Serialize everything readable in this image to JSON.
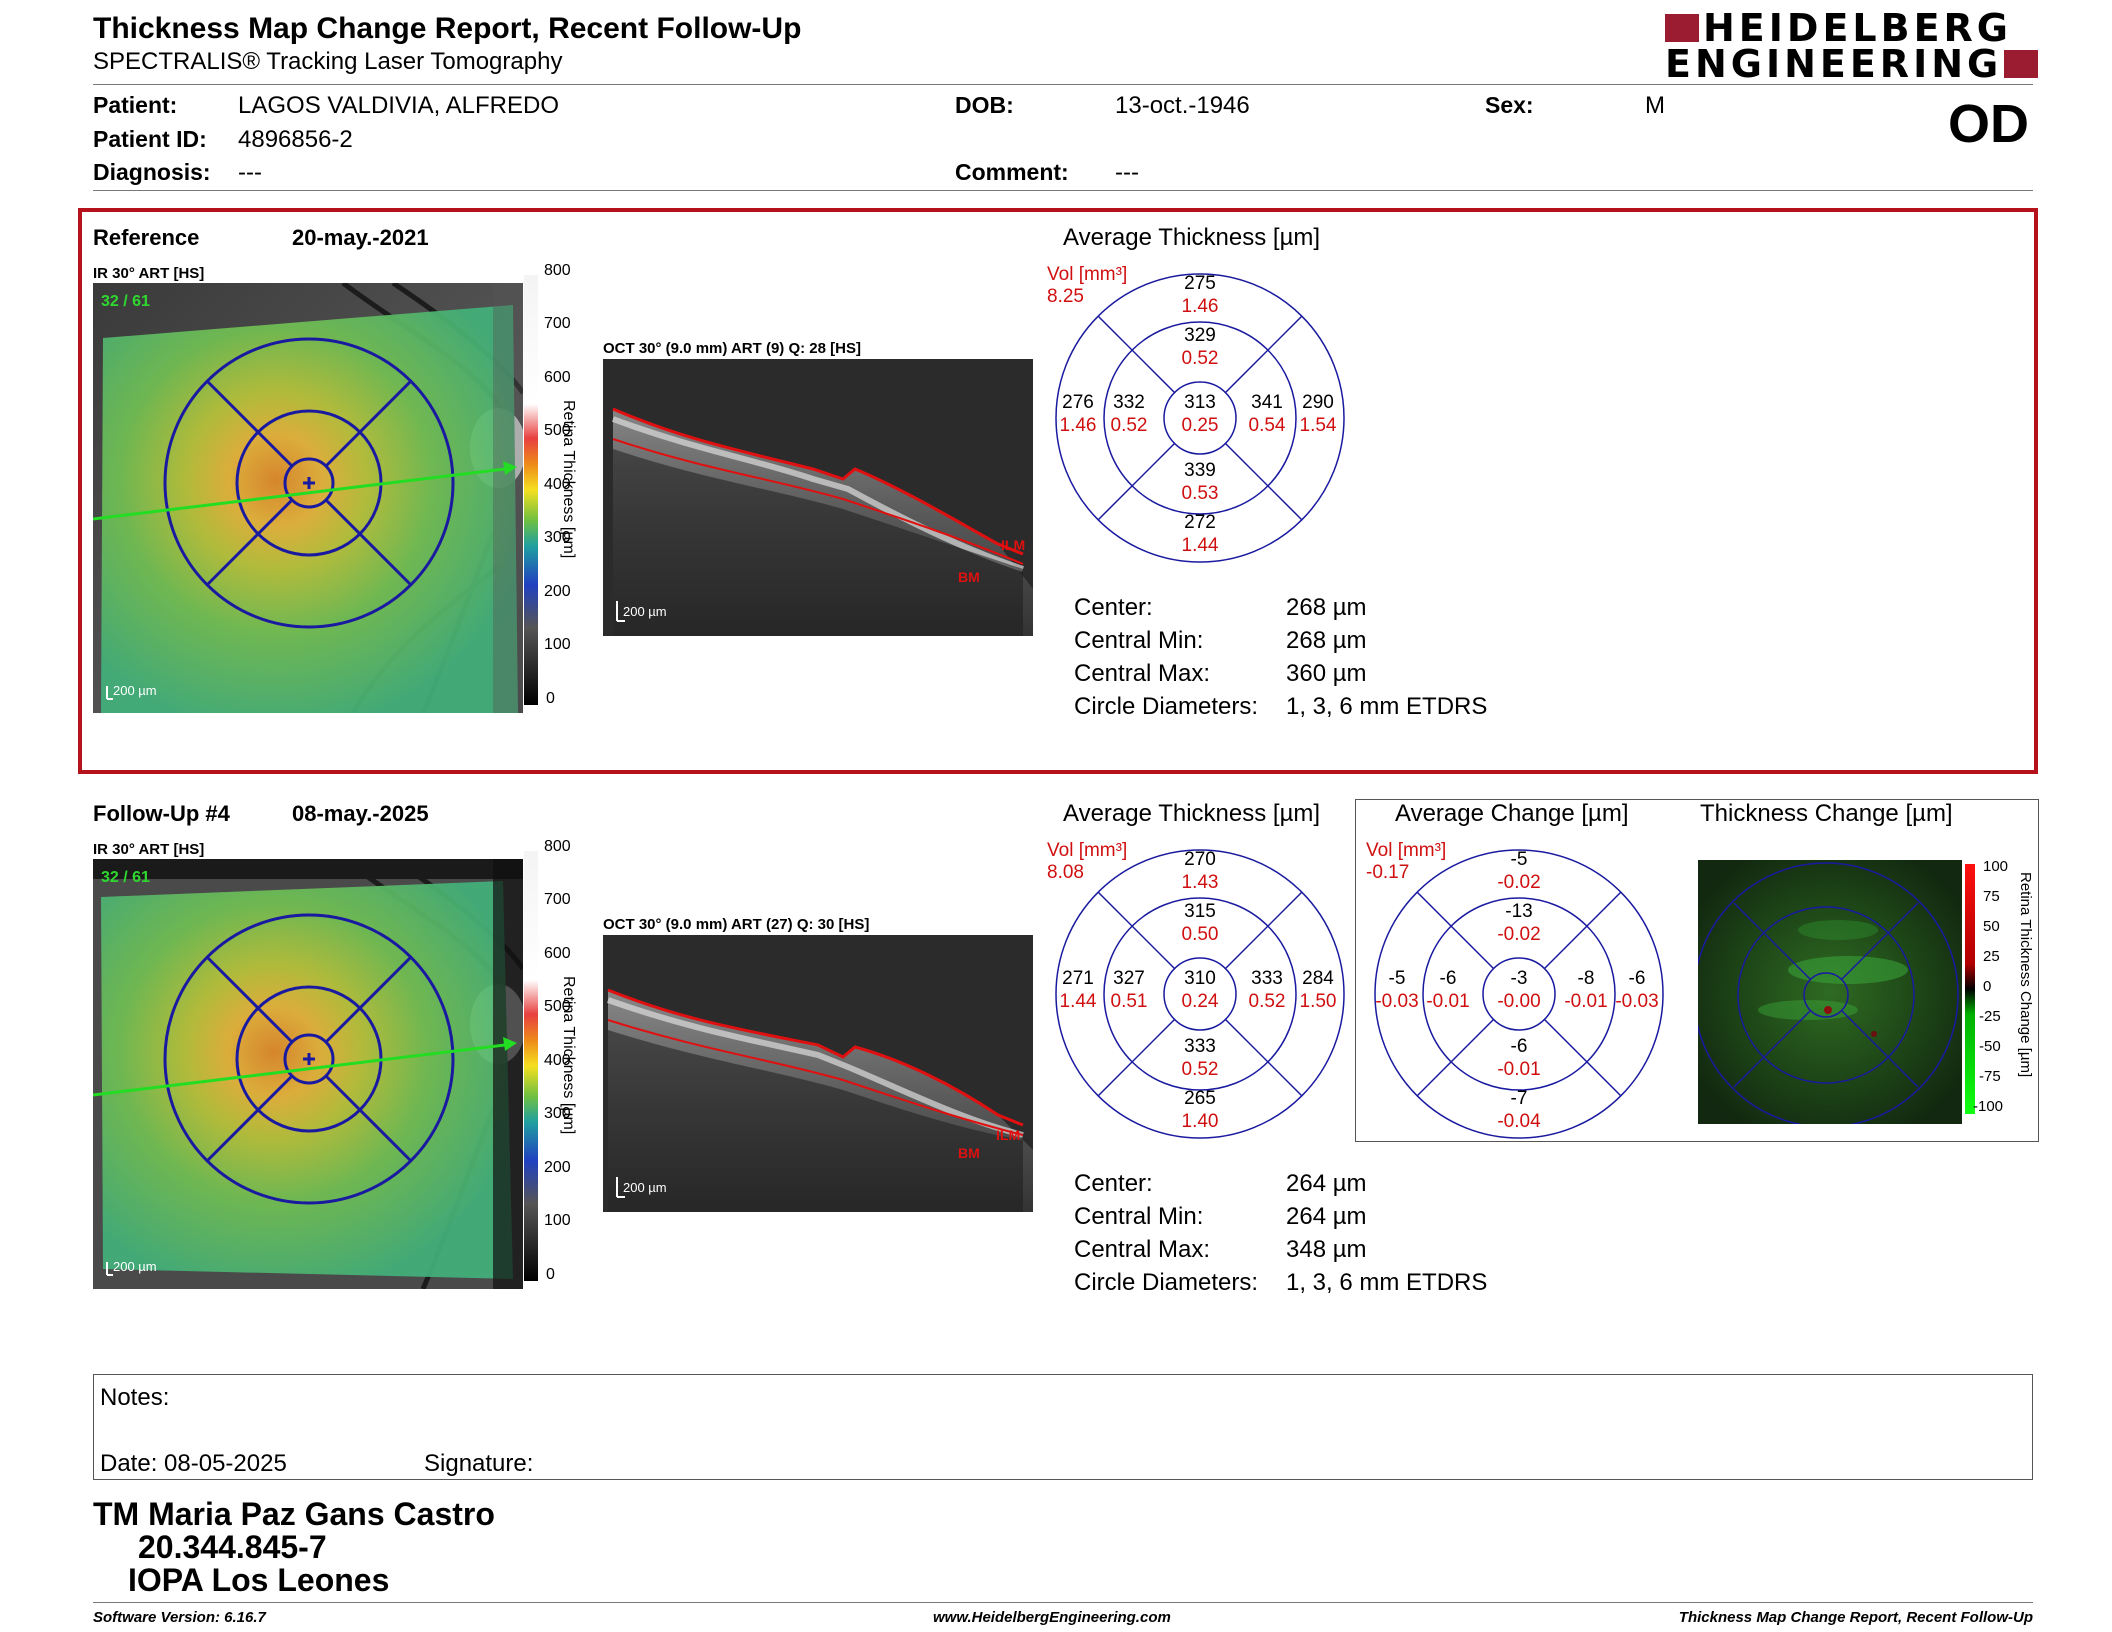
{
  "report": {
    "title": "Thickness Map Change Report, Recent Follow-Up",
    "subtitle": "SPECTRALIS® Tracking Laser Tomography",
    "logo_line1": "HEIDELBERG",
    "logo_line2": "ENGINEERING",
    "eye": "OD"
  },
  "patient": {
    "patient_label": "Patient:",
    "patient_value": "LAGOS VALDIVIA, ALFREDO",
    "id_label": "Patient ID:",
    "id_value": "4896856-2",
    "diagnosis_label": "Diagnosis:",
    "diagnosis_value": "---",
    "dob_label": "DOB:",
    "dob_value": "13-oct.-1946",
    "comment_label": "Comment:",
    "comment_value": "---",
    "sex_label": "Sex:",
    "sex_value": "M"
  },
  "reference": {
    "label": "Reference",
    "date": "20-may.-2021",
    "ir_label": "IR 30° ART [HS]",
    "frame": "32 / 61",
    "oct_label": "OCT 30° (9.0 mm) ART (9) Q: 28 [HS]",
    "scale_bar": "200 µm",
    "colorbar_ticks": [
      "800",
      "700",
      "600",
      "500",
      "400",
      "300",
      "200",
      "100",
      "0"
    ],
    "colorbar_title": "Retina Thickness [µm]",
    "layer_ilm": "ILM",
    "layer_bm": "BM",
    "chart_title": "Average Thickness [µm]",
    "vol_label": "Vol [mm³]",
    "vol_value": "8.25",
    "etdrs": {
      "center": [
        "313",
        "0.25"
      ],
      "inner_sup": [
        "329",
        "0.52"
      ],
      "inner_inf": [
        "339",
        "0.53"
      ],
      "inner_temp": [
        "332",
        "0.52"
      ],
      "inner_nas": [
        "341",
        "0.54"
      ],
      "outer_sup": [
        "275",
        "1.46"
      ],
      "outer_inf": [
        "272",
        "1.44"
      ],
      "outer_temp": [
        "276",
        "1.46"
      ],
      "outer_nas": [
        "290",
        "1.54"
      ]
    },
    "stats": [
      {
        "label": "Center:",
        "value": "268 µm"
      },
      {
        "label": "Central Min:",
        "value": "268 µm"
      },
      {
        "label": "Central Max:",
        "value": "360 µm"
      },
      {
        "label": "Circle Diameters:",
        "value": "1, 3, 6 mm ETDRS"
      }
    ]
  },
  "followup": {
    "label": "Follow-Up #4",
    "date": "08-may.-2025",
    "ir_label": "IR 30° ART [HS]",
    "frame": "32 / 61",
    "oct_label": "OCT 30° (9.0 mm) ART (27) Q: 30 [HS]",
    "scale_bar": "200 µm",
    "colorbar_ticks": [
      "800",
      "700",
      "600",
      "500",
      "400",
      "300",
      "200",
      "100",
      "0"
    ],
    "colorbar_title": "Retina Thickness [µm]",
    "layer_ilm": "ILM",
    "layer_bm": "BM",
    "chart_title": "Average Thickness [µm]",
    "vol_label": "Vol [mm³]",
    "vol_value": "8.08",
    "etdrs": {
      "center": [
        "310",
        "0.24"
      ],
      "inner_sup": [
        "315",
        "0.50"
      ],
      "inner_inf": [
        "333",
        "0.52"
      ],
      "inner_temp": [
        "327",
        "0.51"
      ],
      "inner_nas": [
        "333",
        "0.52"
      ],
      "outer_sup": [
        "270",
        "1.43"
      ],
      "outer_inf": [
        "265",
        "1.40"
      ],
      "outer_temp": [
        "271",
        "1.44"
      ],
      "outer_nas": [
        "284",
        "1.50"
      ]
    },
    "change_title": "Average Change [µm]",
    "change_vol_label": "Vol [mm³]",
    "change_vol_value": "-0.17",
    "change": {
      "center": [
        "-3",
        "-0.00"
      ],
      "inner_sup": [
        "-13",
        "-0.02"
      ],
      "inner_inf": [
        "-6",
        "-0.01"
      ],
      "inner_temp": [
        "-6",
        "-0.01"
      ],
      "inner_nas": [
        "-8",
        "-0.01"
      ],
      "outer_sup": [
        "-5",
        "-0.02"
      ],
      "outer_inf": [
        "-7",
        "-0.04"
      ],
      "outer_temp": [
        "-5",
        "-0.03"
      ],
      "outer_nas": [
        "-6",
        "-0.03"
      ]
    },
    "tc_title": "Thickness Change [µm]",
    "tc_ticks": [
      "100",
      "75",
      "50",
      "25",
      "0",
      "-25",
      "-50",
      "-75",
      "-100"
    ],
    "tc_colorbar_title": "Retina Thickness Change [µm]",
    "stats": [
      {
        "label": "Center:",
        "value": "264 µm"
      },
      {
        "label": "Central Min:",
        "value": "264 µm"
      },
      {
        "label": "Central Max:",
        "value": "348 µm"
      },
      {
        "label": "Circle Diameters:",
        "value": "1, 3, 6 mm ETDRS"
      }
    ]
  },
  "notes": {
    "notes_label": "Notes:",
    "date_label": "Date: 08-05-2025",
    "signature_label": "Signature:"
  },
  "signature": {
    "name": "TM Maria Paz Gans Castro",
    "rut": "20.344.845-7",
    "org": "IOPA Los Leones"
  },
  "footer": {
    "software": "Software Version: 6.16.7",
    "url": "www.HeidelbergEngineering.com",
    "report_name": "Thickness Map Change Report, Recent Follow-Up"
  },
  "colors": {
    "accent_red": "#b5121b",
    "logo_red": "#9b1b30",
    "grid_blue": "#1a1aa0",
    "value_red": "#d01010"
  }
}
